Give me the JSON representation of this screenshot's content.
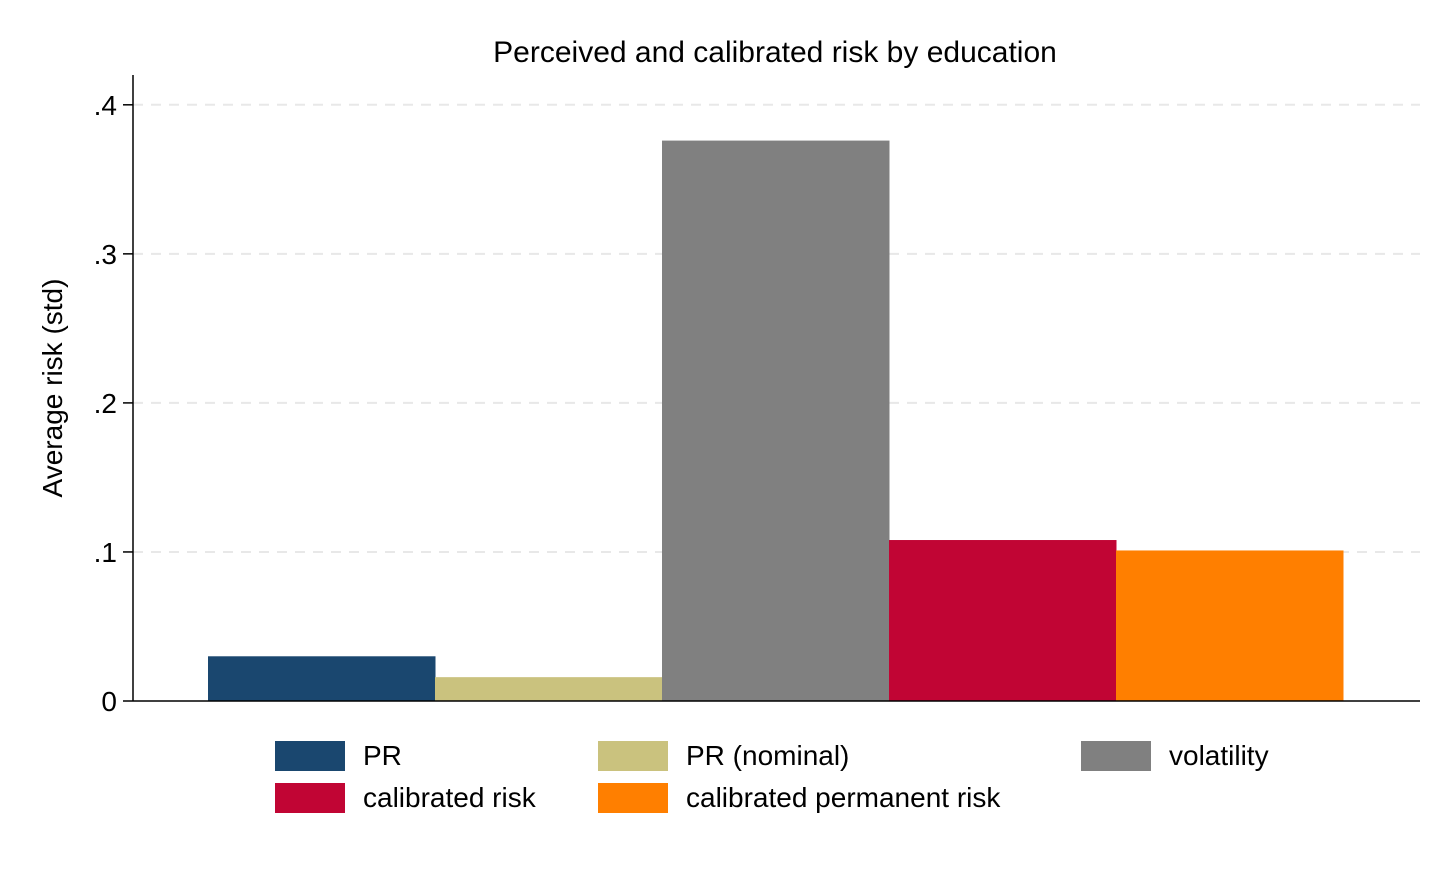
{
  "chart_data": {
    "type": "bar",
    "title": "Perceived and calibrated risk by education",
    "ylabel": "Average risk (std)",
    "xlabel": "",
    "ylim": [
      0,
      0.42
    ],
    "yticks": [
      0,
      0.1,
      0.2,
      0.3,
      0.4
    ],
    "ytick_labels": [
      "0",
      ".1",
      ".2",
      ".3",
      ".4"
    ],
    "grid": true,
    "legend_position": "bottom",
    "series": [
      {
        "name": "PR",
        "value": 0.03,
        "color": "#1a476f"
      },
      {
        "name": "PR (nominal)",
        "value": 0.016,
        "color": "#cac27e"
      },
      {
        "name": "volatility",
        "value": 0.376,
        "color": "#808080"
      },
      {
        "name": "calibrated risk",
        "value": 0.108,
        "color": "#c10534"
      },
      {
        "name": "calibrated permanent risk",
        "value": 0.101,
        "color": "#ff7f00"
      }
    ]
  }
}
